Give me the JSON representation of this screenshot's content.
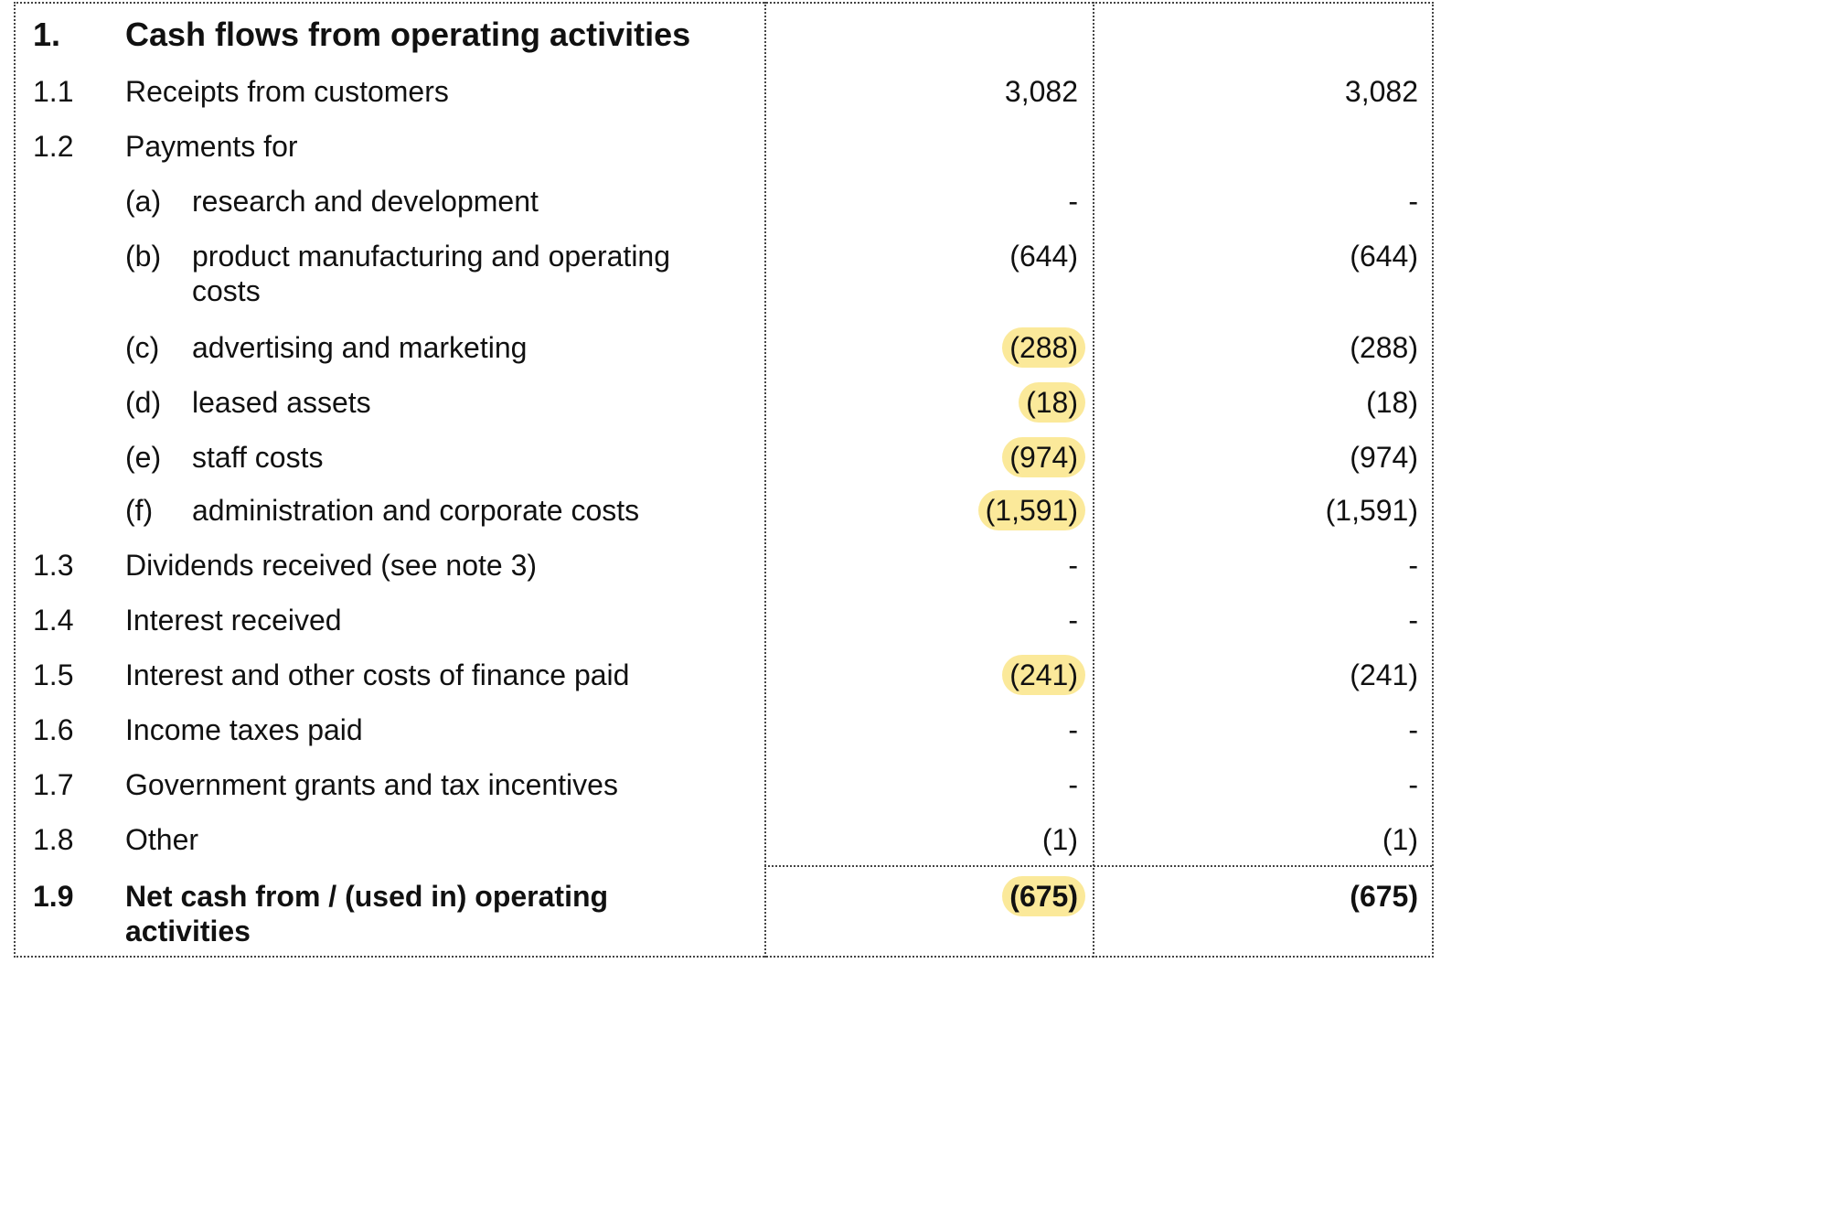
{
  "section": {
    "number": "1.",
    "title": "Cash flows from operating activities"
  },
  "rows": [
    {
      "num": "1.1",
      "label": "Receipts from customers",
      "v1": "3,082",
      "v2": "3,082"
    },
    {
      "num": "1.2",
      "label": "Payments for",
      "v1": "",
      "v2": ""
    },
    {
      "letter": "(a)",
      "label": "research and development",
      "v1": "-",
      "v2": "-"
    },
    {
      "letter": "(b)",
      "label": "product manufacturing and operating",
      "label2": "costs",
      "v1": "(644)",
      "v2": "(644)"
    },
    {
      "letter": "(c)",
      "label": "advertising and marketing",
      "v1": "(288)",
      "v2": "(288)"
    },
    {
      "letter": "(d)",
      "label": "leased assets",
      "v1": "(18)",
      "v2": "(18)"
    },
    {
      "letter": "(e)",
      "label": "staff costs",
      "v1": "(974)",
      "v2": "(974)"
    },
    {
      "letter": "(f)",
      "label": "administration and corporate costs",
      "v1": "(1,591)",
      "v2": "(1,591)"
    },
    {
      "num": "1.3",
      "label": "Dividends received (see note 3)",
      "v1": "-",
      "v2": "-"
    },
    {
      "num": "1.4",
      "label": "Interest received",
      "v1": "-",
      "v2": "-"
    },
    {
      "num": "1.5",
      "label": "Interest and other costs of finance paid",
      "v1": "(241)",
      "v2": "(241)"
    },
    {
      "num": "1.6",
      "label": "Income taxes paid",
      "v1": "-",
      "v2": "-"
    },
    {
      "num": "1.7",
      "label": "Government grants and tax incentives",
      "v1": "-",
      "v2": "-"
    },
    {
      "num": "1.8",
      "label": "Other",
      "v1": "(1)",
      "v2": "(1)"
    },
    {
      "num": "1.9",
      "label": "Net cash from / (used in) operating",
      "label2": "activities",
      "v1": "(675)",
      "v2": "(675)"
    }
  ],
  "highlight_color": "#fbe99a"
}
